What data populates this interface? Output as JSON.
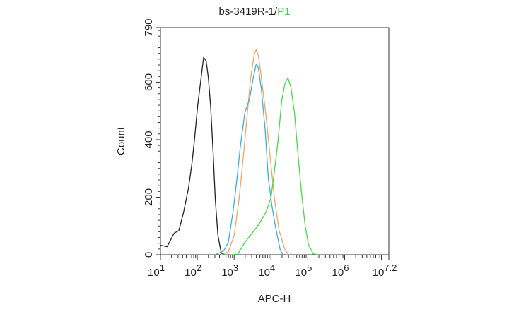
{
  "chart_data": {
    "type": "line",
    "title": "bs-3419R-1/",
    "title_highlight": "P1",
    "title_highlight_color": "#3fcf3f",
    "xlabel": "APC-H",
    "ylabel": "Count",
    "xscale": "log",
    "xlim_log10": [
      1,
      7.2
    ],
    "ylim": [
      0,
      790
    ],
    "x_ticks": [
      {
        "base": "10",
        "exp": "1",
        "log": 1
      },
      {
        "base": "10",
        "exp": "2",
        "log": 2
      },
      {
        "base": "10",
        "exp": "3",
        "log": 3
      },
      {
        "base": "10",
        "exp": "4",
        "log": 4
      },
      {
        "base": "10",
        "exp": "5",
        "log": 5
      },
      {
        "base": "10",
        "exp": "6",
        "log": 6
      },
      {
        "base": "10",
        "exp": "7.2",
        "log": 7.2
      }
    ],
    "y_ticks": [
      "0",
      "200",
      "400",
      "600",
      "790"
    ],
    "grid": false,
    "series": [
      {
        "color": "#222222",
        "points": [
          [
            1.0,
            33
          ],
          [
            1.18,
            28
          ],
          [
            1.37,
            75
          ],
          [
            1.5,
            84
          ],
          [
            1.63,
            149
          ],
          [
            1.76,
            231
          ],
          [
            1.85,
            313
          ],
          [
            1.92,
            395
          ],
          [
            2.01,
            518
          ],
          [
            2.08,
            592
          ],
          [
            2.17,
            686
          ],
          [
            2.24,
            674
          ],
          [
            2.3,
            616
          ],
          [
            2.36,
            518
          ],
          [
            2.43,
            354
          ],
          [
            2.49,
            190
          ],
          [
            2.56,
            67
          ],
          [
            2.65,
            6
          ],
          [
            2.72,
            0
          ]
        ]
      },
      {
        "color": "#f2a365",
        "points": [
          [
            2.65,
            0
          ],
          [
            2.84,
            10
          ],
          [
            3.0,
            67
          ],
          [
            3.13,
            190
          ],
          [
            3.26,
            354
          ],
          [
            3.36,
            493
          ],
          [
            3.45,
            616
          ],
          [
            3.55,
            698
          ],
          [
            3.6,
            713
          ],
          [
            3.66,
            690
          ],
          [
            3.74,
            616
          ],
          [
            3.87,
            477
          ],
          [
            4.0,
            313
          ],
          [
            4.1,
            190
          ],
          [
            4.22,
            84
          ],
          [
            4.38,
            18
          ],
          [
            4.48,
            0
          ]
        ]
      },
      {
        "color": "#3aaed8",
        "points": [
          [
            2.52,
            2
          ],
          [
            2.72,
            14
          ],
          [
            2.84,
            43
          ],
          [
            2.97,
            149
          ],
          [
            3.07,
            256
          ],
          [
            3.17,
            379
          ],
          [
            3.29,
            493
          ],
          [
            3.42,
            543
          ],
          [
            3.52,
            616
          ],
          [
            3.6,
            664
          ],
          [
            3.66,
            649
          ],
          [
            3.74,
            575
          ],
          [
            3.84,
            436
          ],
          [
            3.93,
            264
          ],
          [
            4.03,
            166
          ],
          [
            4.13,
            92
          ],
          [
            4.25,
            18
          ],
          [
            4.32,
            0
          ]
        ]
      },
      {
        "color": "#4cd44c",
        "points": [
          [
            2.91,
            0
          ],
          [
            3.1,
            2
          ],
          [
            3.29,
            43
          ],
          [
            3.49,
            75
          ],
          [
            3.68,
            108
          ],
          [
            3.87,
            149
          ],
          [
            4.0,
            198
          ],
          [
            4.1,
            297
          ],
          [
            4.19,
            395
          ],
          [
            4.29,
            534
          ],
          [
            4.38,
            596
          ],
          [
            4.46,
            615
          ],
          [
            4.54,
            583
          ],
          [
            4.64,
            493
          ],
          [
            4.73,
            354
          ],
          [
            4.83,
            215
          ],
          [
            4.93,
            100
          ],
          [
            5.02,
            34
          ],
          [
            5.15,
            3
          ],
          [
            5.28,
            0
          ]
        ]
      }
    ]
  }
}
